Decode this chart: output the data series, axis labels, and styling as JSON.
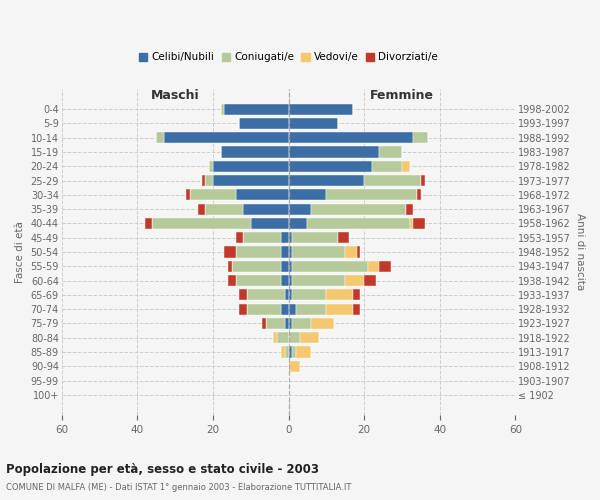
{
  "age_groups": [
    "100+",
    "95-99",
    "90-94",
    "85-89",
    "80-84",
    "75-79",
    "70-74",
    "65-69",
    "60-64",
    "55-59",
    "50-54",
    "45-49",
    "40-44",
    "35-39",
    "30-34",
    "25-29",
    "20-24",
    "15-19",
    "10-14",
    "5-9",
    "0-4"
  ],
  "birth_years": [
    "≤ 1902",
    "1903-1907",
    "1908-1912",
    "1913-1917",
    "1918-1922",
    "1923-1927",
    "1928-1932",
    "1933-1937",
    "1938-1942",
    "1943-1947",
    "1948-1952",
    "1953-1957",
    "1958-1962",
    "1963-1967",
    "1968-1972",
    "1973-1977",
    "1978-1982",
    "1983-1987",
    "1988-1992",
    "1993-1997",
    "1998-2002"
  ],
  "male_celibe": [
    0,
    0,
    0,
    0,
    0,
    1,
    2,
    1,
    2,
    2,
    2,
    2,
    10,
    12,
    14,
    20,
    20,
    18,
    33,
    13,
    17
  ],
  "male_coniugato": [
    0,
    0,
    0,
    1,
    3,
    5,
    9,
    10,
    12,
    13,
    12,
    10,
    26,
    10,
    12,
    2,
    1,
    0,
    2,
    0,
    1
  ],
  "male_vedovo": [
    0,
    0,
    0,
    1,
    1,
    0,
    0,
    0,
    0,
    0,
    0,
    0,
    0,
    0,
    0,
    0,
    0,
    0,
    0,
    0,
    0
  ],
  "male_divorziato": [
    0,
    0,
    0,
    0,
    0,
    1,
    2,
    2,
    2,
    1,
    3,
    2,
    2,
    2,
    1,
    1,
    0,
    0,
    0,
    0,
    0
  ],
  "fem_nubile": [
    0,
    0,
    0,
    1,
    0,
    1,
    2,
    1,
    1,
    1,
    1,
    1,
    5,
    6,
    10,
    20,
    22,
    24,
    33,
    13,
    17
  ],
  "fem_coniugata": [
    0,
    0,
    0,
    1,
    3,
    5,
    8,
    9,
    14,
    20,
    14,
    12,
    27,
    25,
    24,
    15,
    8,
    6,
    4,
    0,
    0
  ],
  "fem_vedova": [
    0,
    0,
    3,
    4,
    5,
    6,
    7,
    7,
    5,
    3,
    3,
    0,
    1,
    0,
    0,
    0,
    2,
    0,
    0,
    0,
    0
  ],
  "fem_divorziata": [
    0,
    0,
    0,
    0,
    0,
    0,
    2,
    2,
    3,
    3,
    1,
    3,
    3,
    2,
    1,
    1,
    0,
    0,
    0,
    0,
    0
  ],
  "color_celibe": "#3a6ea5",
  "color_coniugato": "#b5c99a",
  "color_vedovo": "#f5c76e",
  "color_divorziato": "#c0392b",
  "xlim": 60,
  "bg_color": "#f5f5f5",
  "grid_color": "#cccccc",
  "title": "Popolazione per età, sesso e stato civile - 2003",
  "subtitle": "COMUNE DI MALFA (ME) - Dati ISTAT 1° gennaio 2003 - Elaborazione TUTTITALIA.IT",
  "ylabel_left": "Fasce di età",
  "ylabel_right": "Anni di nascita",
  "maschi_label": "Maschi",
  "femmine_label": "Femmine",
  "legend_labels": [
    "Celibi/Nubili",
    "Coniugati/e",
    "Vedovi/e",
    "Divorziati/e"
  ]
}
